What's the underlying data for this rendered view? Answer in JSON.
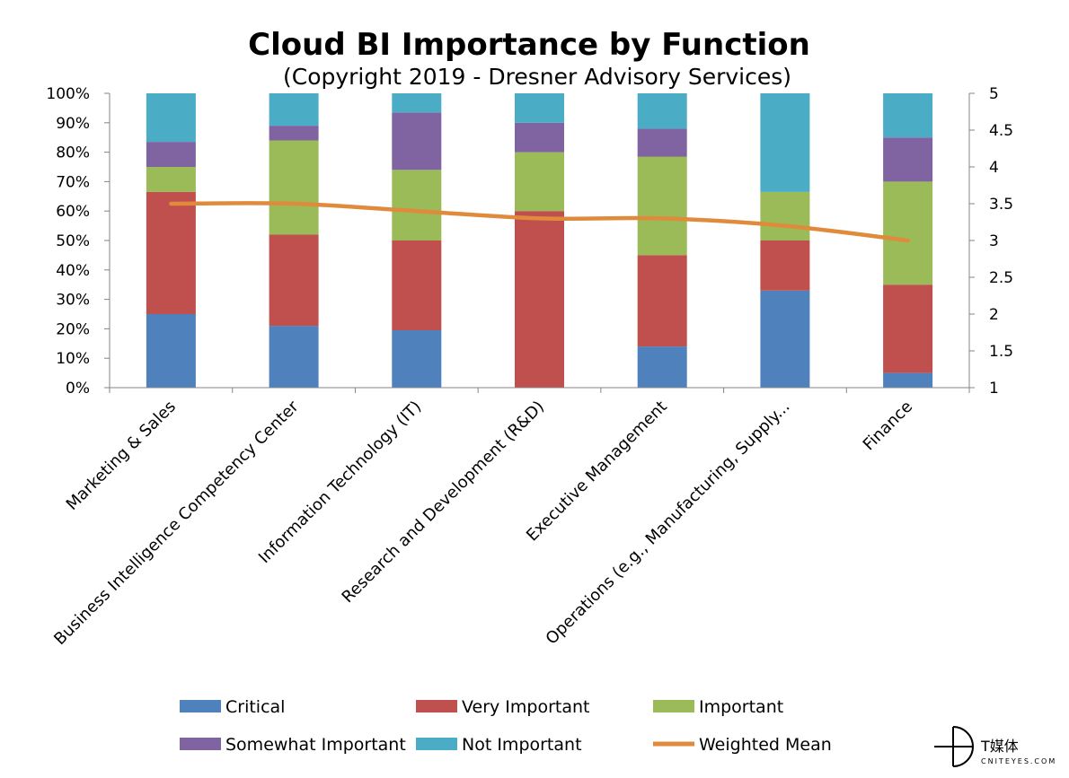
{
  "chart_data": {
    "type": "bar",
    "stacked": true,
    "title": "Cloud BI Importance by Function",
    "subtitle": "(Copyright 2019 - Dresner Advisory Services)",
    "categories": [
      "Marketing & Sales",
      "Business Intelligence Competency Center",
      "Information Technology (IT)",
      "Research and Development (R&D)",
      "Executive Management",
      "Operations (e.g., Manufacturing, Supply...",
      "Finance"
    ],
    "series": [
      {
        "name": "Critical",
        "color": "#4F81BD",
        "values": [
          25,
          21,
          19.5,
          0,
          14,
          33,
          5
        ]
      },
      {
        "name": "Very Important",
        "color": "#C0504D",
        "values": [
          41.5,
          31,
          30.5,
          60,
          31,
          17,
          30
        ]
      },
      {
        "name": "Important",
        "color": "#9BBB59",
        "values": [
          8.5,
          32,
          24,
          20,
          33.5,
          16.5,
          35
        ]
      },
      {
        "name": "Somewhat Important",
        "color": "#8064A2",
        "values": [
          8.5,
          5,
          19.5,
          10,
          9.5,
          0,
          15
        ]
      },
      {
        "name": "Not Important",
        "color": "#4BACC6",
        "values": [
          16.5,
          11,
          6.5,
          10,
          12,
          33.5,
          15
        ]
      }
    ],
    "line_series": {
      "name": "Weighted Mean",
      "color": "#E08A3C",
      "axis": "right",
      "values": [
        3.5,
        3.5,
        3.4,
        3.3,
        3.3,
        3.2,
        3.0
      ]
    },
    "y_left": {
      "min": 0,
      "max": 100,
      "ticks": [
        "0%",
        "10%",
        "20%",
        "30%",
        "40%",
        "50%",
        "60%",
        "70%",
        "80%",
        "90%",
        "100%"
      ]
    },
    "y_right": {
      "min": 1,
      "max": 5,
      "ticks": [
        "1",
        "1.5",
        "2",
        "2.5",
        "3",
        "3.5",
        "4",
        "4.5",
        "5"
      ]
    },
    "legend": {
      "placement": "bottom"
    },
    "grid": false
  },
  "watermark": {
    "main": "T媒体",
    "sub": "CNITEYES.COM",
    "icon": "crosshair-d-logo-icon"
  }
}
